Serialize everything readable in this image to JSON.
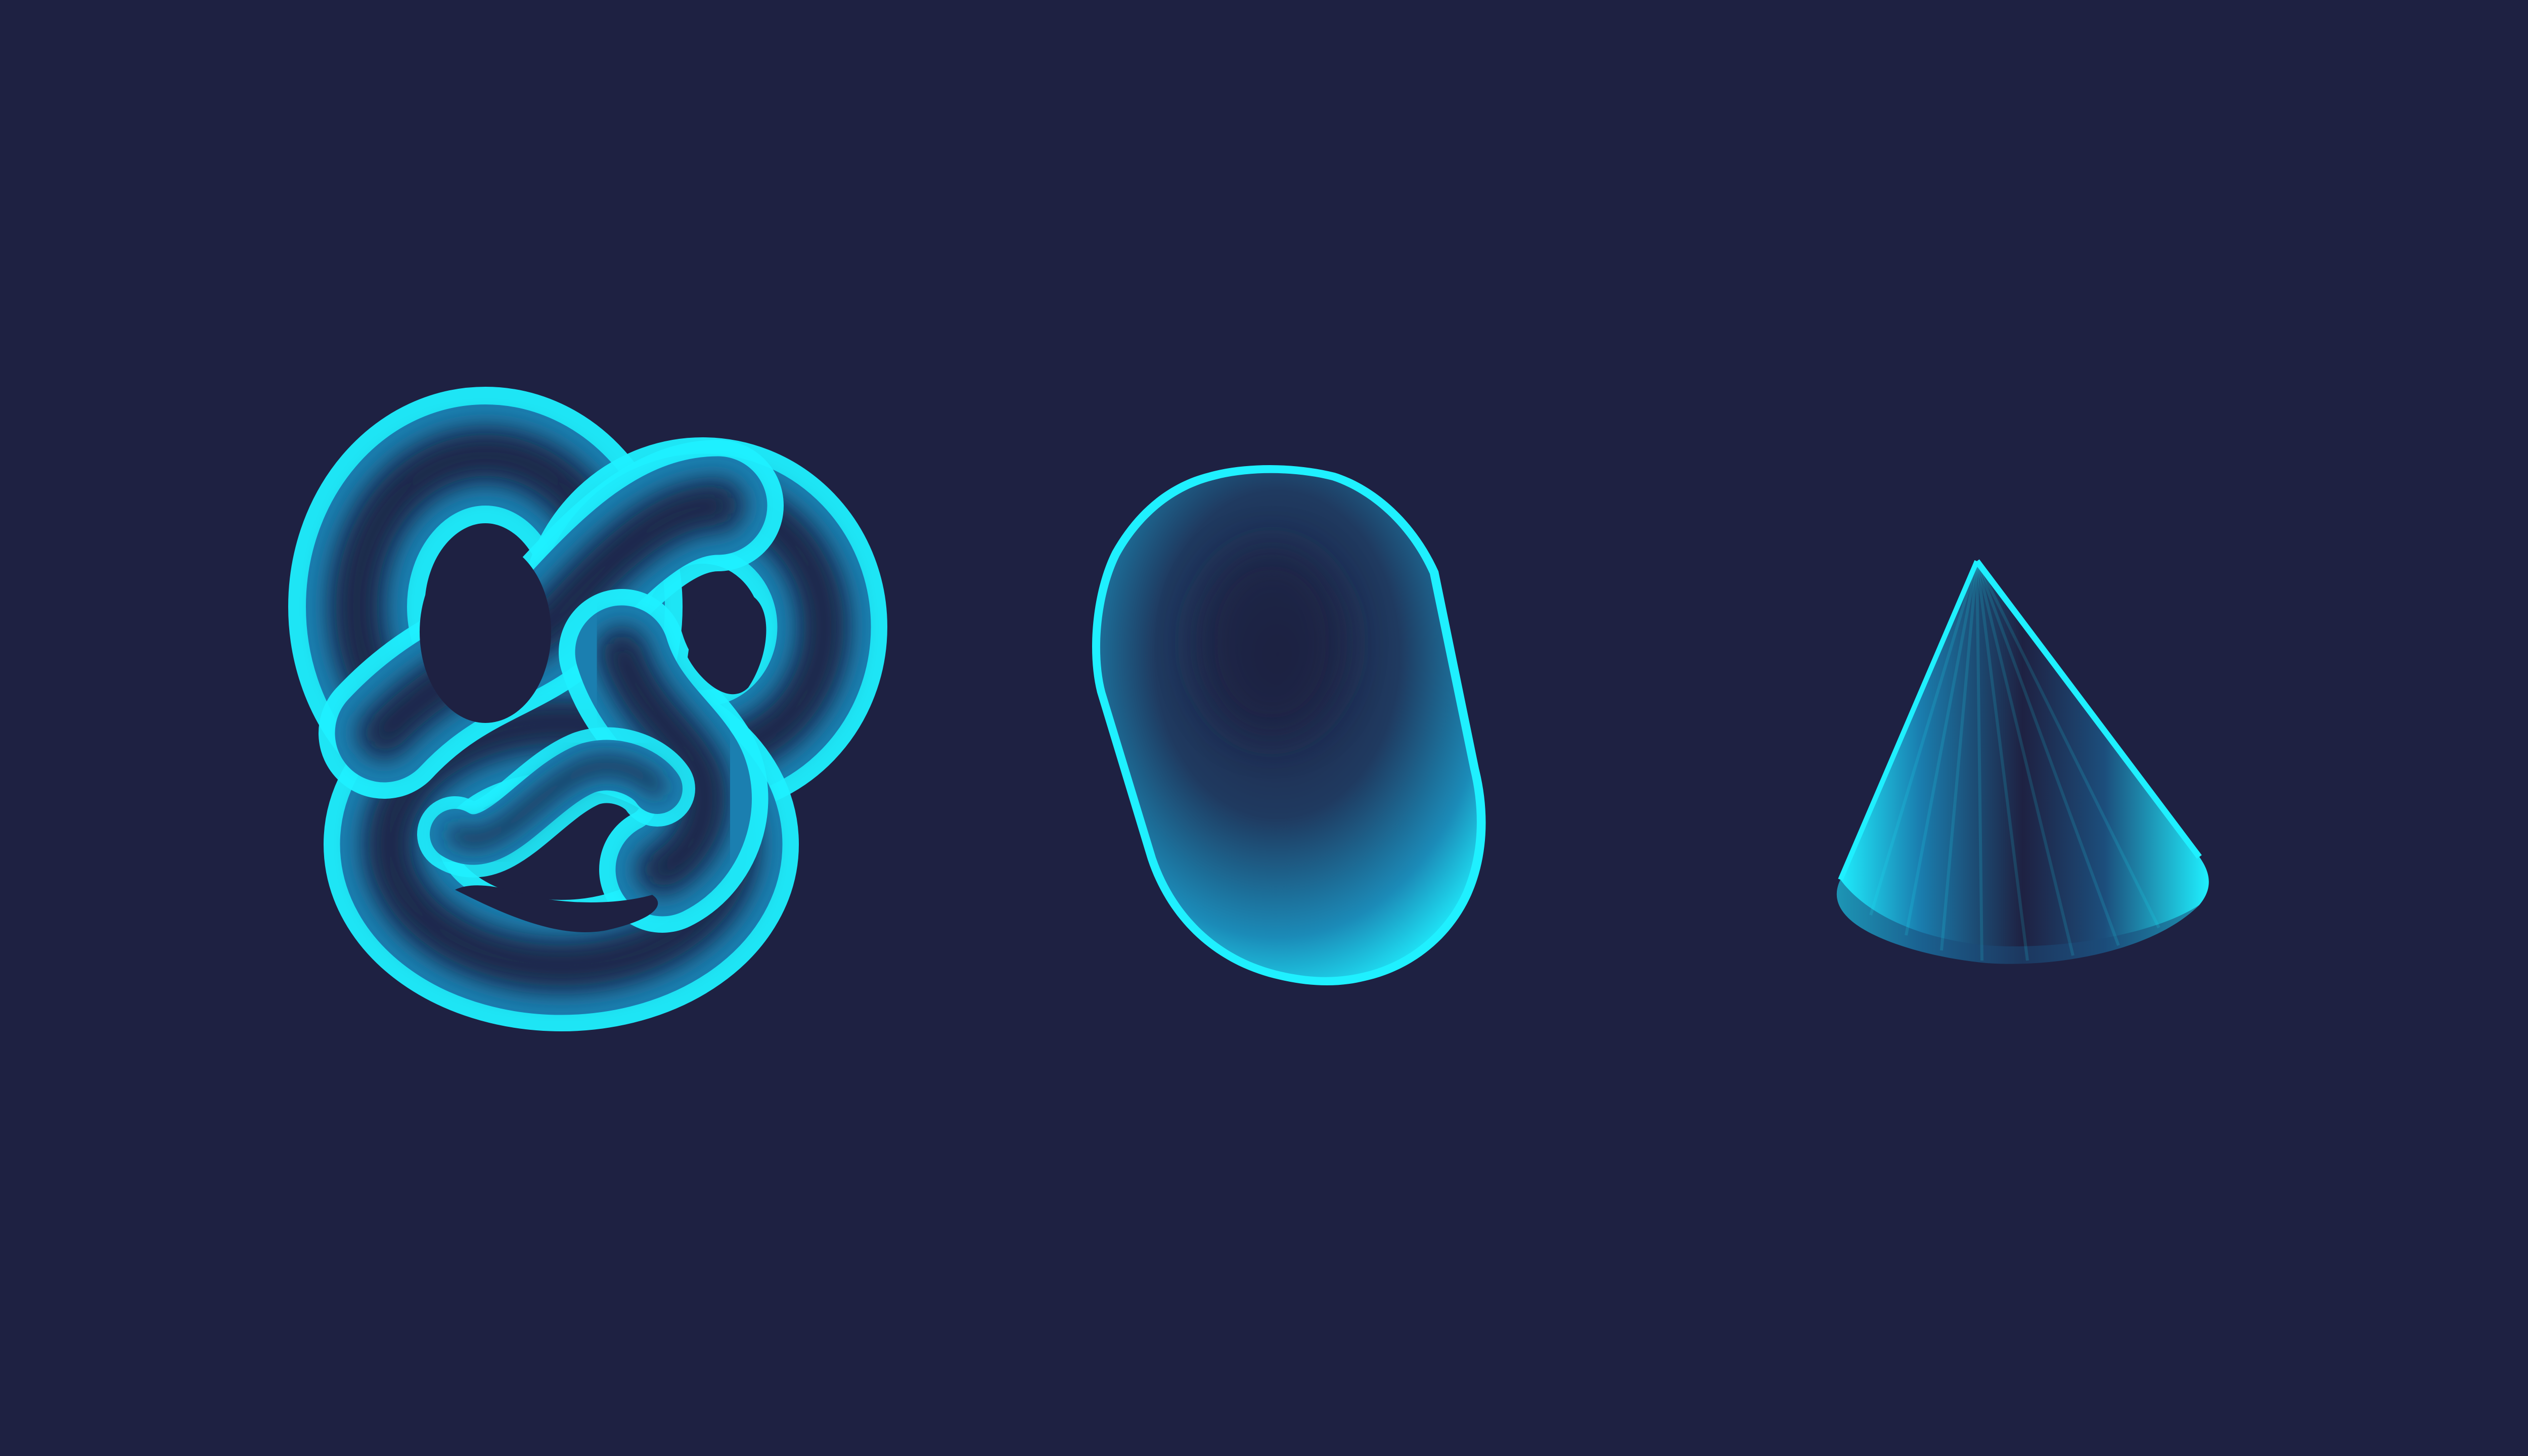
{
  "scene": {
    "background_color": "#1e2142",
    "glow_color": "#1ff0ff",
    "core_color": "#1e2142",
    "objects": [
      {
        "name": "torus-knot",
        "shape": "torus knot"
      },
      {
        "name": "capsule",
        "shape": "capsule"
      },
      {
        "name": "cone",
        "shape": "cone"
      }
    ]
  }
}
